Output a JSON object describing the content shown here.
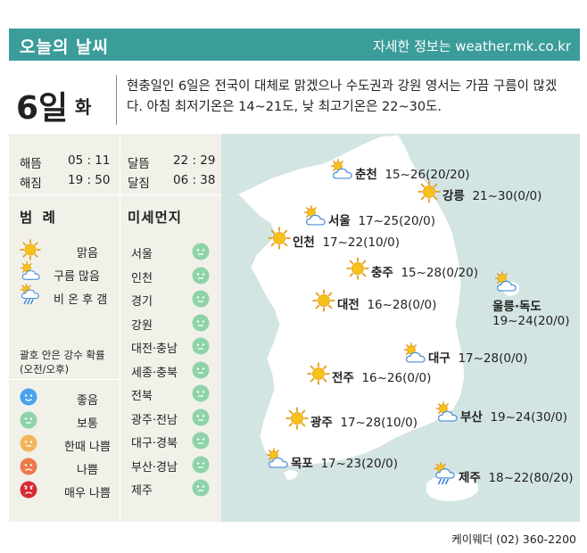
{
  "header": {
    "title": "오늘의 날씨",
    "info": "자세한 정보는 weather.mk.co.kr"
  },
  "day": {
    "num": "6일",
    "name": "화",
    "summary": "현충일인 6일은 전국이 대체로 맑겠으나 수도권과 강원 영서는 가끔 구름이 많겠다. 아침 최저기온은 14~21도, 낮 최고기온은 22~30도."
  },
  "sun": {
    "sunrise_label": "해뜸",
    "sunrise": "05 : 11",
    "sunset_label": "해짐",
    "sunset": "19 : 50",
    "moonrise_label": "달뜸",
    "moonrise": "22 : 29",
    "moonset_label": "달짐",
    "moonset": "06 : 38"
  },
  "legend": {
    "title": "범 례",
    "items": [
      {
        "icon": "sun-icon",
        "label": "맑음"
      },
      {
        "icon": "sun-cloud-icon",
        "label": "구름 많음"
      },
      {
        "icon": "rain-cloud-icon",
        "label": "비 온 후 갬"
      }
    ],
    "note_line1": "괄호 안은 강수 확률",
    "note_line2": "(오전/오후)"
  },
  "dust_legend": [
    {
      "label": "좋음",
      "color": "#4aa3ee",
      "face": "smile"
    },
    {
      "label": "보통",
      "color": "#8fd3a9",
      "face": "neutral"
    },
    {
      "label": "한때 나쁨",
      "color": "#f4b55a",
      "face": "neutral"
    },
    {
      "label": "나쁨",
      "color": "#ec7a4a",
      "face": "frown"
    },
    {
      "label": "매우 나쁨",
      "color": "#d82a33",
      "face": "angry"
    }
  ],
  "dust": {
    "title": "미세먼지",
    "regions": [
      {
        "name": "서울",
        "level": "보통"
      },
      {
        "name": "인천",
        "level": "보통"
      },
      {
        "name": "경기",
        "level": "보통"
      },
      {
        "name": "강원",
        "level": "보통"
      },
      {
        "name": "대전·충남",
        "level": "보통"
      },
      {
        "name": "세종·충북",
        "level": "보통"
      },
      {
        "name": "전북",
        "level": "보통"
      },
      {
        "name": "광주·전남",
        "level": "보통"
      },
      {
        "name": "대구·경북",
        "level": "보통"
      },
      {
        "name": "부산·경남",
        "level": "보통"
      },
      {
        "name": "제주",
        "level": "보통"
      }
    ]
  },
  "cities": [
    {
      "name": "춘천",
      "temp": "15~26",
      "rain": "(20/20)",
      "icon": "sun-cloud-icon"
    },
    {
      "name": "강릉",
      "temp": "21~30",
      "rain": "(0/0)",
      "icon": "sun-icon"
    },
    {
      "name": "서울",
      "temp": "17~25",
      "rain": "(20/0)",
      "icon": "sun-cloud-icon"
    },
    {
      "name": "인천",
      "temp": "17~22",
      "rain": "(10/0)",
      "icon": "sun-icon"
    },
    {
      "name": "충주",
      "temp": "15~28",
      "rain": "(0/20)",
      "icon": "sun-icon"
    },
    {
      "name": "대전",
      "temp": "16~28",
      "rain": "(0/0)",
      "icon": "sun-icon"
    },
    {
      "name": "울릉·독도",
      "temp": "19~24",
      "rain": "(20/0)",
      "icon": "sun-cloud-icon"
    },
    {
      "name": "대구",
      "temp": "17~28",
      "rain": "(0/0)",
      "icon": "sun-cloud-icon"
    },
    {
      "name": "전주",
      "temp": "16~26",
      "rain": "(0/0)",
      "icon": "sun-icon"
    },
    {
      "name": "부산",
      "temp": "19~24",
      "rain": "(30/0)",
      "icon": "sun-cloud-icon"
    },
    {
      "name": "광주",
      "temp": "17~28",
      "rain": "(10/0)",
      "icon": "sun-icon"
    },
    {
      "name": "목포",
      "temp": "17~23",
      "rain": "(20/0)",
      "icon": "sun-cloud-icon"
    },
    {
      "name": "제주",
      "temp": "18~22",
      "rain": "(80/20)",
      "icon": "rain-cloud-icon"
    }
  ],
  "footer": "케이웨더 (02) 360-2200"
}
